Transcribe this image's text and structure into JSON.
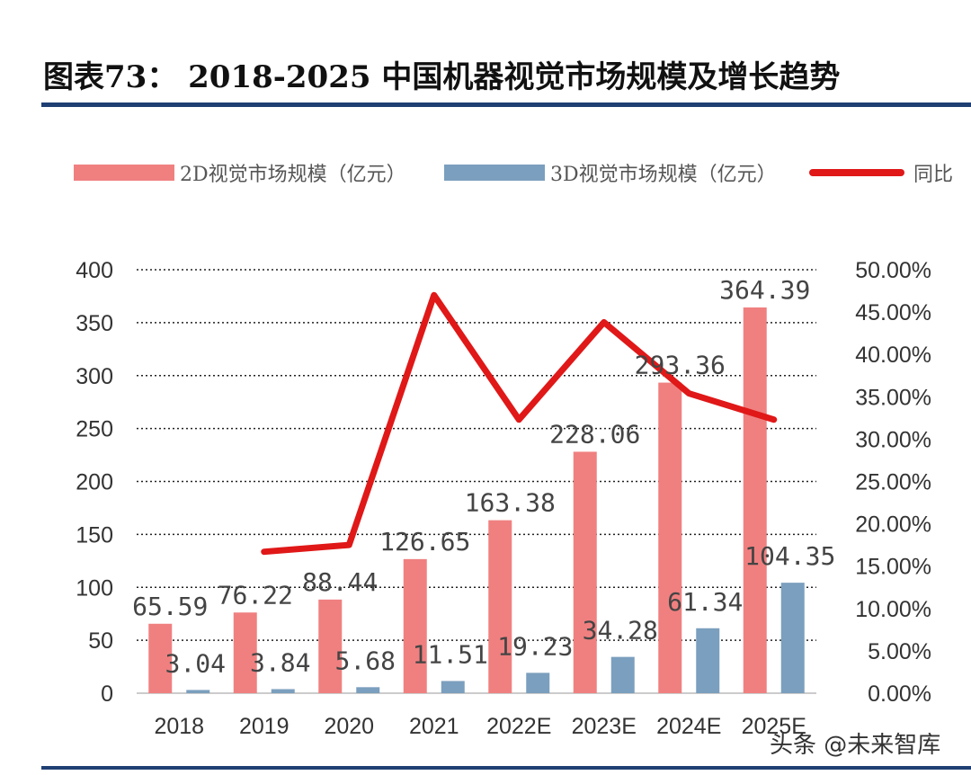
{
  "header": {
    "title": "图表73：   2018-2025 中国机器视觉市场规模及增长趋势"
  },
  "chart_data": {
    "type": "bar",
    "categories": [
      "2018",
      "2019",
      "2020",
      "2021",
      "2022E",
      "2023E",
      "2024E",
      "2025E"
    ],
    "series": [
      {
        "name": "2D视觉市场规模（亿元）",
        "type": "bar",
        "axis": "left",
        "color": "#f08080",
        "values": [
          65.59,
          76.22,
          88.44,
          126.65,
          163.38,
          228.06,
          293.36,
          364.39
        ],
        "labels": [
          "65.59",
          "76.22",
          "88.44",
          "126.65",
          "163.38",
          "228.06",
          "293.36",
          "364.39"
        ]
      },
      {
        "name": "3D视觉市场规模（亿元）",
        "type": "bar",
        "axis": "left",
        "color": "#7b9fbe",
        "values": [
          3.04,
          3.84,
          5.68,
          11.51,
          19.23,
          34.28,
          61.34,
          104.35
        ],
        "labels": [
          "3.04",
          "3.84",
          "5.68",
          "11.51",
          "19.23",
          "34.28",
          "61.34",
          "104.35"
        ]
      },
      {
        "name": "同比",
        "type": "line",
        "axis": "right",
        "color": "#e01818",
        "values": [
          null,
          16.7,
          17.5,
          47.0,
          32.3,
          43.8,
          35.4,
          32.3
        ]
      }
    ],
    "left_axis": {
      "ylim": [
        0,
        400
      ],
      "ticks": [
        "0",
        "50",
        "100",
        "150",
        "200",
        "250",
        "300",
        "350",
        "400"
      ]
    },
    "right_axis": {
      "ylim": [
        0,
        50
      ],
      "ticks": [
        "0.00%",
        "5.00%",
        "10.00%",
        "15.00%",
        "20.00%",
        "25.00%",
        "30.00%",
        "35.00%",
        "40.00%",
        "45.00%",
        "50.00%"
      ]
    },
    "grid": "dotted-horizontal",
    "legend": "top"
  },
  "watermark": {
    "text": "头条 @未来智库",
    "icon": "chat-bubble-icon"
  }
}
